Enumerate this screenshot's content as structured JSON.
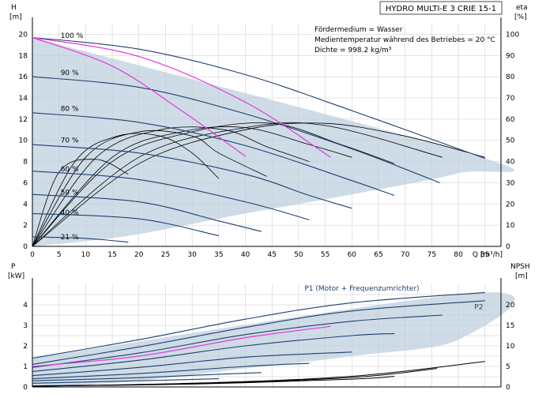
{
  "title": "HYDRO MULTI-E 3 CRIE 15-1",
  "info_lines": [
    "Fördermedium = Wasser",
    "Medientemperatur während des Betriebes = 20 °C",
    "Dichte = 998.2 kg/m³"
  ],
  "colors": {
    "speed_curve": "#1f3f6e",
    "eff_curve": "#000000",
    "bep_curve": "#e23ad6",
    "envelope_fill": "#c9d8e6",
    "grid": "#c8c8c8"
  },
  "chart_data": [
    {
      "type": "line",
      "name": "head",
      "xlabel": "Q [m³/h]",
      "ylabel": "H\n[m]",
      "y2label": "eta\n[%]",
      "xlim": [
        0,
        88
      ],
      "ylim": [
        0,
        21
      ],
      "y2lim": [
        0,
        105
      ],
      "xticks": [
        0,
        5,
        10,
        15,
        20,
        25,
        30,
        35,
        40,
        45,
        50,
        55,
        60,
        65,
        70,
        75,
        80,
        85
      ],
      "yticks": [
        0,
        2,
        4,
        6,
        8,
        10,
        12,
        14,
        16,
        18,
        20
      ],
      "y2ticks": [
        0,
        10,
        20,
        30,
        40,
        50,
        60,
        70,
        80,
        90,
        100
      ],
      "speed_labels": [
        {
          "label": "100 %",
          "q": 5,
          "h": 19.9
        },
        {
          "label": "90 %",
          "q": 5,
          "h": 16.4
        },
        {
          "label": "80 %",
          "q": 5,
          "h": 13.0
        },
        {
          "label": "70 %",
          "q": 5,
          "h": 10.0
        },
        {
          "label": "60 %",
          "q": 5,
          "h": 7.3
        },
        {
          "label": "50 %",
          "q": 5,
          "h": 5.1
        },
        {
          "label": "40 %",
          "q": 5,
          "h": 3.2
        },
        {
          "label": "21 %",
          "q": 5,
          "h": 0.9
        }
      ],
      "head_curves": [
        {
          "name": "100 %",
          "points": [
            [
              0,
              19.7
            ],
            [
              20,
              18.6
            ],
            [
              40,
              16.2
            ],
            [
              60,
              12.8
            ],
            [
              80,
              9.2
            ],
            [
              85,
              8.3
            ]
          ]
        },
        {
          "name": "90 %",
          "points": [
            [
              0,
              16.0
            ],
            [
              20,
              15.0
            ],
            [
              40,
              12.5
            ],
            [
              60,
              9.2
            ],
            [
              76.5,
              6.0
            ]
          ]
        },
        {
          "name": "80 %",
          "points": [
            [
              0,
              12.6
            ],
            [
              20,
              11.7
            ],
            [
              40,
              9.5
            ],
            [
              60,
              6.2
            ],
            [
              68,
              4.8
            ]
          ]
        },
        {
          "name": "70 %",
          "points": [
            [
              0,
              9.6
            ],
            [
              20,
              8.8
            ],
            [
              40,
              6.8
            ],
            [
              52,
              4.8
            ],
            [
              60,
              3.6
            ]
          ]
        },
        {
          "name": "60 %",
          "points": [
            [
              0,
              7.1
            ],
            [
              20,
              6.3
            ],
            [
              40,
              4.2
            ],
            [
              52,
              2.5
            ]
          ]
        },
        {
          "name": "50 %",
          "points": [
            [
              0,
              4.9
            ],
            [
              20,
              4.2
            ],
            [
              35,
              2.4
            ],
            [
              43,
              1.4
            ]
          ]
        },
        {
          "name": "40 %",
          "points": [
            [
              0,
              3.1
            ],
            [
              20,
              2.6
            ],
            [
              35,
              1.0
            ]
          ]
        },
        {
          "name": "21 %",
          "points": [
            [
              0,
              0.9
            ],
            [
              10,
              0.75
            ],
            [
              18,
              0.4
            ]
          ]
        }
      ],
      "efficiency_curves": [
        {
          "name": "100 %",
          "points": [
            [
              0,
              0
            ],
            [
              20,
              39
            ],
            [
              40,
              55
            ],
            [
              55,
              58
            ],
            [
              70,
              52
            ],
            [
              85,
              42
            ]
          ]
        },
        {
          "name": "90 %",
          "points": [
            [
              0,
              0
            ],
            [
              20,
              42
            ],
            [
              40,
              56
            ],
            [
              55,
              57
            ],
            [
              77,
              42
            ]
          ]
        },
        {
          "name": "80 %",
          "points": [
            [
              0,
              0
            ],
            [
              15,
              40
            ],
            [
              30,
              54
            ],
            [
              45,
              58
            ],
            [
              58,
              48
            ],
            [
              68,
              39
            ]
          ]
        },
        {
          "name": "70 %",
          "points": [
            [
              0,
              0
            ],
            [
              15,
              42
            ],
            [
              28,
              54
            ],
            [
              40,
              56
            ],
            [
              52,
              48
            ],
            [
              60,
              42
            ]
          ]
        },
        {
          "name": "60 %",
          "points": [
            [
              0,
              0
            ],
            [
              12,
              42
            ],
            [
              24,
              55
            ],
            [
              36,
              55
            ],
            [
              44,
              47
            ],
            [
              52,
              40
            ]
          ]
        },
        {
          "name": "50 %",
          "points": [
            [
              0,
              0
            ],
            [
              10,
              42
            ],
            [
              20,
              54
            ],
            [
              30,
              52
            ],
            [
              35,
              44
            ],
            [
              44,
              33
            ]
          ]
        },
        {
          "name": "40 %",
          "points": [
            [
              0,
              0
            ],
            [
              8,
              40
            ],
            [
              16,
              52
            ],
            [
              24,
              52
            ],
            [
              30,
              44
            ],
            [
              35,
              32
            ]
          ]
        },
        {
          "name": "21 %",
          "points": [
            [
              0,
              0
            ],
            [
              5,
              35
            ],
            [
              12,
              41
            ],
            [
              18,
              34
            ]
          ]
        }
      ],
      "bep_curves": [
        {
          "points": [
            [
              0,
              19.7
            ],
            [
              15,
              17.0
            ],
            [
              28,
              12.8
            ],
            [
              40,
              8.5
            ]
          ]
        },
        {
          "points": [
            [
              0,
              19.7
            ],
            [
              20,
              17.9
            ],
            [
              40,
              13.6
            ],
            [
              56,
              8.4
            ]
          ]
        }
      ],
      "envelope": [
        [
          0,
          19.7
        ],
        [
          85,
          8.3
        ],
        [
          80,
          6.9
        ],
        [
          60,
          4.9
        ],
        [
          40,
          3.1
        ],
        [
          18,
          1.0
        ],
        [
          0,
          0
        ]
      ]
    },
    {
      "type": "line",
      "name": "power",
      "ylabel": "P\n[kW]",
      "y2label": "NPSH\n[m]",
      "xlim": [
        0,
        88
      ],
      "ylim": [
        0,
        5
      ],
      "y2lim": [
        0,
        25
      ],
      "yticks": [
        0,
        1,
        2,
        3,
        4
      ],
      "y2ticks": [
        0,
        5,
        10,
        15,
        20
      ],
      "power_curves": [
        {
          "name": "P1 (Motor + Frequenzumrichter)",
          "points": [
            [
              0,
              1.4
            ],
            [
              20,
              2.3
            ],
            [
              40,
              3.3
            ],
            [
              60,
              4.1
            ],
            [
              85,
              4.6
            ]
          ]
        },
        {
          "name": "P2",
          "points": [
            [
              0,
              1.1
            ],
            [
              20,
              1.95
            ],
            [
              40,
              2.9
            ],
            [
              60,
              3.7
            ],
            [
              85,
              4.2
            ]
          ]
        },
        {
          "name": "90 %",
          "points": [
            [
              0,
              0.95
            ],
            [
              20,
              1.65
            ],
            [
              40,
              2.55
            ],
            [
              60,
              3.2
            ],
            [
              77,
              3.5
            ]
          ]
        },
        {
          "name": "80 %",
          "points": [
            [
              0,
              0.75
            ],
            [
              20,
              1.3
            ],
            [
              40,
              2.0
            ],
            [
              60,
              2.5
            ],
            [
              68,
              2.6
            ]
          ]
        },
        {
          "name": "70 %",
          "points": [
            [
              0,
              0.55
            ],
            [
              20,
              0.95
            ],
            [
              40,
              1.45
            ],
            [
              60,
              1.7
            ]
          ]
        },
        {
          "name": "60 %",
          "points": [
            [
              0,
              0.4
            ],
            [
              20,
              0.65
            ],
            [
              40,
              1.0
            ],
            [
              52,
              1.15
            ]
          ]
        },
        {
          "name": "50 %",
          "points": [
            [
              0,
              0.3
            ],
            [
              20,
              0.45
            ],
            [
              35,
              0.62
            ],
            [
              43,
              0.7
            ]
          ]
        },
        {
          "name": "40 %",
          "points": [
            [
              0,
              0.18
            ],
            [
              20,
              0.3
            ],
            [
              35,
              0.4
            ]
          ]
        },
        {
          "name": "21 %",
          "points": [
            [
              0,
              0.05
            ],
            [
              10,
              0.08
            ],
            [
              18,
              0.1
            ]
          ]
        }
      ],
      "power_bep": [
        {
          "points": [
            [
              0,
              1.0
            ],
            [
              20,
              1.5
            ],
            [
              40,
              2.4
            ],
            [
              56,
              2.95
            ]
          ]
        }
      ],
      "power_labels": [
        {
          "label": "P1 (Motor + Frequenzumrichter)",
          "q": 60,
          "p": 4.8
        },
        {
          "label": "P2",
          "q": 83,
          "p": 3.9
        }
      ],
      "npsh_curves": [
        {
          "name": "NPSH 100 %",
          "points": [
            [
              0,
              0.2
            ],
            [
              30,
              0.9
            ],
            [
              60,
              2.6
            ],
            [
              85,
              6.2
            ]
          ]
        },
        {
          "name": "NPSH 90 %",
          "points": [
            [
              0,
              0.2
            ],
            [
              30,
              0.8
            ],
            [
              60,
              2.3
            ],
            [
              76,
              4.5
            ]
          ]
        },
        {
          "name": "NPSH 80 %",
          "points": [
            [
              0,
              0.2
            ],
            [
              30,
              0.7
            ],
            [
              60,
              1.9
            ],
            [
              68,
              2.6
            ]
          ]
        }
      ],
      "envelope": [
        [
          0,
          1.4
        ],
        [
          85,
          4.6
        ],
        [
          80,
          2.3
        ],
        [
          60,
          1.5
        ],
        [
          40,
          0.9
        ],
        [
          18,
          0.25
        ],
        [
          0,
          0
        ]
      ]
    }
  ]
}
